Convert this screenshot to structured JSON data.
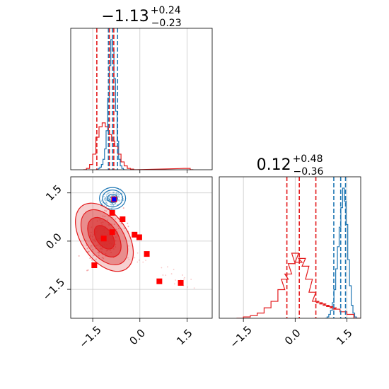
{
  "colors": {
    "series_a": "#1f77b4",
    "series_b": "#e31a1c",
    "marker_square": "#ff0000",
    "marker_truth": "#0000ff",
    "grid": "#c8c8c8",
    "contour_fill": "#d62728"
  },
  "chart_data": [
    {
      "type": "histogram",
      "panel": "top-left",
      "title": {
        "base": "−1.13",
        "sup": "+0.24",
        "sub": "−0.23"
      },
      "xlim": [
        -2.2,
        2.3
      ],
      "grid": true,
      "tick_values": [
        -1.5,
        0.0,
        1.5
      ],
      "series": [
        {
          "color": "#1f77b4",
          "bins": [
            -1.35,
            -1.3,
            -1.25,
            -1.2,
            -1.15,
            -1.1,
            -1.05,
            -1.0,
            -0.95,
            -0.9,
            -0.85,
            -0.8,
            -0.75,
            -0.7,
            -0.65,
            -0.6,
            -0.55,
            -0.5
          ],
          "counts": [
            0.0,
            0.01,
            0.02,
            0.04,
            0.08,
            0.16,
            0.3,
            0.55,
            0.8,
            1.0,
            0.92,
            0.7,
            0.45,
            0.22,
            0.08,
            0.03,
            0.01,
            0.0
          ],
          "quantile_lines": [
            -1.0,
            -0.87,
            -0.71
          ]
        },
        {
          "color": "#e31a1c",
          "bins": [
            -1.75,
            -1.65,
            -1.55,
            -1.45,
            -1.35,
            -1.25,
            -1.15,
            -1.05,
            -0.95,
            -0.85,
            -0.75,
            -0.65,
            -0.55,
            -0.45,
            -0.35,
            -0.25,
            -0.15,
            1.45,
            1.55,
            1.65
          ],
          "counts": [
            0.0,
            0.01,
            0.04,
            0.12,
            0.25,
            0.33,
            0.36,
            0.33,
            0.27,
            0.22,
            0.18,
            0.12,
            0.06,
            0.03,
            0.01,
            0.005,
            0.0,
            0.01,
            0.01,
            0.0
          ],
          "quantile_lines": [
            -1.37,
            -0.97,
            -0.83
          ]
        }
      ]
    },
    {
      "type": "histogram",
      "panel": "bottom-right",
      "title": {
        "base": "0.12",
        "sup": "+0.48",
        "sub": "−0.36"
      },
      "xlim": [
        -2.2,
        1.9
      ],
      "grid": true,
      "tick_values": [
        -1.5,
        0.0,
        1.5
      ],
      "tick_labels": [
        "−1.5",
        "0.0",
        "1.5"
      ],
      "series": [
        {
          "color": "#1f77b4",
          "bins": [
            0.9,
            0.95,
            1.0,
            1.05,
            1.1,
            1.15,
            1.2,
            1.25,
            1.3,
            1.35,
            1.4,
            1.45,
            1.5,
            1.55,
            1.6,
            1.65,
            1.7,
            1.75,
            1.8
          ],
          "counts": [
            0.0,
            0.01,
            0.03,
            0.06,
            0.12,
            0.22,
            0.38,
            0.55,
            0.7,
            0.85,
            1.0,
            0.9,
            0.72,
            0.45,
            0.25,
            0.1,
            0.04,
            0.01,
            0.0
          ],
          "quantile_lines": [
            1.12,
            1.32,
            1.46
          ]
        },
        {
          "color": "#e31a1c",
          "bins": [
            -1.6,
            -1.4,
            -1.2,
            -1.0,
            -0.8,
            -0.6,
            -0.4,
            -0.3,
            -0.2,
            -0.1,
            0.0,
            0.1,
            0.2,
            0.3,
            0.4,
            0.5,
            0.6,
            0.7,
            0.8,
            0.9,
            1.0,
            1.1,
            1.2,
            1.4,
            1.6,
            1.8
          ],
          "counts": [
            0.0,
            0.01,
            0.02,
            0.04,
            0.08,
            0.13,
            0.22,
            0.3,
            0.34,
            0.42,
            0.5,
            0.43,
            0.46,
            0.4,
            0.3,
            0.2,
            0.13,
            0.12,
            0.11,
            0.1,
            0.09,
            0.08,
            0.07,
            0.05,
            0.03,
            0.0
          ],
          "quantile_lines": [
            -0.24,
            0.12,
            0.6
          ]
        }
      ]
    },
    {
      "type": "scatter",
      "panel": "bottom-left",
      "xlim": [
        -2.2,
        2.3
      ],
      "ylim": [
        -2.4,
        2.0
      ],
      "grid": true,
      "x_tick_values": [
        -1.5,
        0.0,
        1.5
      ],
      "x_tick_labels": [
        "−1.5",
        "0.0",
        "1.5"
      ],
      "y_tick_values": [
        -1.5,
        0.0,
        1.5
      ],
      "y_tick_labels": [
        "−1.5",
        "0.0",
        "1.5"
      ],
      "red_square_points": [
        {
          "x": -1.45,
          "y": -0.75
        },
        {
          "x": -1.15,
          "y": 0.08
        },
        {
          "x": -0.88,
          "y": 0.28
        },
        {
          "x": -0.88,
          "y": 0.88
        },
        {
          "x": -0.55,
          "y": 0.68
        },
        {
          "x": -0.17,
          "y": 0.2
        },
        {
          "x": -0.02,
          "y": 0.12
        },
        {
          "x": 0.22,
          "y": -0.4
        },
        {
          "x": 0.62,
          "y": -1.25
        },
        {
          "x": 1.3,
          "y": -1.3
        },
        {
          "x": -0.82,
          "y": 1.3
        }
      ],
      "truth_point": {
        "x": -0.82,
        "y": 1.3
      },
      "contours": [
        {
          "color": "#1f77b4",
          "center": {
            "x": -0.87,
            "y": 1.33
          },
          "sd": {
            "x": 0.16,
            "y": 0.13
          },
          "levels": [
            1,
            2,
            2.6
          ]
        },
        {
          "color": "#e31a1c",
          "center": {
            "x": -1.13,
            "y": 0.12
          },
          "sd": {
            "x": 0.28,
            "y": 0.46
          },
          "rotation_deg": -35,
          "levels": [
            0.9,
            1.5,
            2.1,
            2.6
          ]
        }
      ]
    }
  ]
}
